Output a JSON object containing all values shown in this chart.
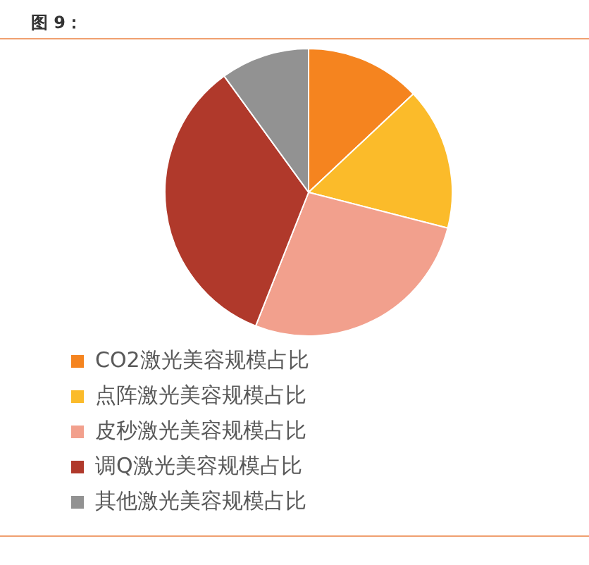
{
  "chart_data": {
    "type": "pie",
    "title": "图 9：",
    "categories": [
      "CO2激光美容规模占比",
      "点阵激光美容规模占比",
      "皮秒激光美容规模占比",
      "调Q激光美容规模占比",
      "其他激光美容规模占比"
    ],
    "values": [
      13,
      16,
      27,
      34,
      10
    ],
    "colors": [
      "#f5841f",
      "#fbbb2a",
      "#f2a08d",
      "#b0392b",
      "#929292"
    ],
    "legend": "bottom"
  }
}
